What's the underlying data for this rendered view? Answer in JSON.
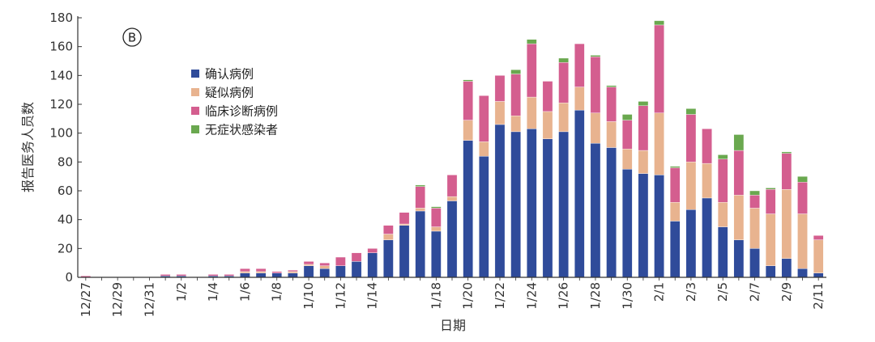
{
  "panel_label": "B",
  "chart_data": {
    "type": "bar",
    "stacked": true,
    "ylabel": "报告医务人员数",
    "xlabel": "日期",
    "ylim": [
      0,
      180
    ],
    "yticks": [
      0,
      20,
      40,
      60,
      80,
      100,
      120,
      140,
      160,
      180
    ],
    "categories": [
      "12/27",
      "12/28",
      "12/29",
      "12/30",
      "12/31",
      "1/1",
      "1/2",
      "1/3",
      "1/4",
      "1/5",
      "1/6",
      "1/7",
      "1/8",
      "1/9",
      "1/10",
      "1/11",
      "1/12",
      "1/13",
      "1/14",
      "1/15",
      "1/16",
      "1/17",
      "1/18",
      "1/19",
      "1/20",
      "1/21",
      "1/22",
      "1/23",
      "1/24",
      "1/25",
      "1/26",
      "1/27",
      "1/28",
      "1/29",
      "1/30",
      "1/31",
      "2/1",
      "2/2",
      "2/3",
      "2/4",
      "2/5",
      "2/6",
      "2/7",
      "2/8",
      "2/9",
      "2/10",
      "2/11"
    ],
    "tick_labels": [
      "12/27",
      "12/29",
      "12/31",
      "1/2",
      "1/4",
      "1/6",
      "1/8",
      "1/10",
      "1/12",
      "1/14",
      "1/18",
      "1/20",
      "1/22",
      "1/24",
      "1/26",
      "1/28",
      "1/30",
      "2/1",
      "2/3",
      "2/5",
      "2/7",
      "2/9",
      "2/11"
    ],
    "series": [
      {
        "name": "确认病例",
        "color": "#2f4b9a",
        "values": [
          0,
          0,
          0,
          0,
          0,
          1,
          1,
          0,
          1,
          1,
          3,
          3,
          3,
          3,
          8,
          6,
          8,
          11,
          17,
          26,
          36,
          46,
          32,
          53,
          95,
          84,
          106,
          101,
          103,
          96,
          101,
          116,
          93,
          90,
          75,
          72,
          71,
          39,
          47,
          55,
          35,
          26,
          20,
          8,
          13,
          6,
          3
        ]
      },
      {
        "name": "疑似病例",
        "color": "#e8b38f",
        "values": [
          0,
          0,
          0,
          0,
          0,
          0,
          0,
          0,
          0,
          0,
          1,
          1,
          0,
          1,
          1,
          2,
          0,
          0,
          0,
          4,
          1,
          2,
          3,
          3,
          14,
          10,
          16,
          11,
          22,
          19,
          20,
          16,
          21,
          18,
          14,
          16,
          43,
          13,
          33,
          24,
          17,
          31,
          28,
          36,
          48,
          38,
          23
        ]
      },
      {
        "name": "临床诊断病例",
        "color": "#d45e8f",
        "values": [
          1,
          0,
          0,
          0,
          0,
          1,
          1,
          0,
          1,
          1,
          2,
          2,
          1,
          1,
          2,
          2,
          6,
          6,
          3,
          6,
          8,
          15,
          13,
          15,
          27,
          32,
          18,
          29,
          37,
          21,
          28,
          30,
          39,
          24,
          20,
          31,
          61,
          24,
          33,
          24,
          30,
          31,
          9,
          17,
          25,
          22,
          3
        ]
      },
      {
        "name": "无症状感染者",
        "color": "#6aa84f",
        "values": [
          0,
          0,
          0,
          0,
          0,
          0,
          0,
          0,
          0,
          0,
          0,
          0,
          0,
          0,
          0,
          0,
          0,
          0,
          0,
          0,
          0,
          1,
          1,
          0,
          1,
          0,
          0,
          3,
          3,
          0,
          3,
          0,
          1,
          1,
          4,
          3,
          3,
          1,
          4,
          0,
          3,
          11,
          3,
          1,
          1,
          4,
          0
        ]
      }
    ]
  }
}
